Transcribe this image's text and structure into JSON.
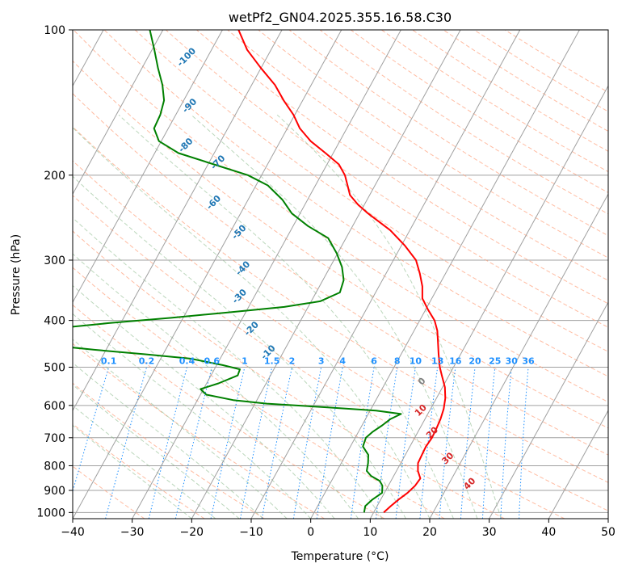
{
  "chart_data": {
    "type": "line",
    "title": "wetPf2_GN04.2025.355.16.58.C30",
    "xlabel": "Temperature (°C)",
    "ylabel": "Pressure (hPa)",
    "xlim": [
      -40,
      50
    ],
    "ylim": [
      1030,
      100
    ],
    "y_scale": "log",
    "x_ticks": [
      -40,
      -30,
      -20,
      -10,
      0,
      10,
      20,
      30,
      40,
      50
    ],
    "y_ticks": [
      100,
      200,
      300,
      400,
      500,
      600,
      700,
      800,
      900,
      1000
    ],
    "grid": true,
    "skew_t": true,
    "colors": {
      "temperature": "#ff0000",
      "dewpoint": "#008000",
      "isotherm": "#a0a0a0",
      "dry_adiabat": "#ffa07a",
      "moist_adiabat": "#8fbc8f",
      "mixing_ratio": "#1e90ff",
      "label_blue": "#1f77b4",
      "label_red": "#d62728",
      "label_grey": "#808080"
    },
    "series": [
      {
        "key": "temperature",
        "points": [
          [
            1000,
            11.7
          ],
          [
            970,
            12.3
          ],
          [
            940,
            13.0
          ],
          [
            910,
            13.9
          ],
          [
            880,
            14.5
          ],
          [
            850,
            14.7
          ],
          [
            820,
            13.6
          ],
          [
            790,
            12.9
          ],
          [
            760,
            12.8
          ],
          [
            730,
            12.7
          ],
          [
            700,
            12.9
          ],
          [
            670,
            12.8
          ],
          [
            640,
            12.6
          ],
          [
            610,
            12.2
          ],
          [
            580,
            11.5
          ],
          [
            550,
            10.4
          ],
          [
            520,
            8.8
          ],
          [
            500,
            7.7
          ],
          [
            470,
            6.3
          ],
          [
            440,
            4.9
          ],
          [
            420,
            3.9
          ],
          [
            400,
            2.5
          ],
          [
            380,
            0.4
          ],
          [
            360,
            -1.6
          ],
          [
            340,
            -2.7
          ],
          [
            320,
            -4.3
          ],
          [
            300,
            -6.2
          ],
          [
            280,
            -9.4
          ],
          [
            260,
            -13.3
          ],
          [
            240,
            -18.6
          ],
          [
            230,
            -21.1
          ],
          [
            220,
            -23.3
          ],
          [
            210,
            -24.6
          ],
          [
            200,
            -26.0
          ],
          [
            190,
            -28.0
          ],
          [
            180,
            -31.3
          ],
          [
            170,
            -34.9
          ],
          [
            160,
            -37.9
          ],
          [
            150,
            -40.2
          ],
          [
            140,
            -43.2
          ],
          [
            130,
            -46.1
          ],
          [
            120,
            -50.0
          ],
          [
            110,
            -54.0
          ],
          [
            100,
            -57.3
          ]
        ]
      },
      {
        "key": "dewpoint",
        "points": [
          [
            1000,
            8.4
          ],
          [
            970,
            8.0
          ],
          [
            940,
            8.6
          ],
          [
            910,
            9.6
          ],
          [
            880,
            9.0
          ],
          [
            860,
            8.1
          ],
          [
            840,
            6.2
          ],
          [
            820,
            5.0
          ],
          [
            790,
            4.5
          ],
          [
            760,
            3.8
          ],
          [
            730,
            2.1
          ],
          [
            700,
            1.8
          ],
          [
            680,
            2.4
          ],
          [
            660,
            3.4
          ],
          [
            640,
            4.2
          ],
          [
            625,
            5.5
          ],
          [
            615,
            1.0
          ],
          [
            605,
            -8.0
          ],
          [
            595,
            -18.0
          ],
          [
            585,
            -24.0
          ],
          [
            570,
            -29.0
          ],
          [
            555,
            -30.5
          ],
          [
            540,
            -28.0
          ],
          [
            520,
            -25.5
          ],
          [
            505,
            -25.7
          ],
          [
            495,
            -29.0
          ],
          [
            480,
            -35.0
          ],
          [
            470,
            -43.0
          ],
          [
            460,
            -52.0
          ],
          [
            450,
            -60.0
          ],
          [
            440,
            -63.2
          ],
          [
            425,
            -63.0
          ],
          [
            415,
            -60.0
          ],
          [
            405,
            -52.0
          ],
          [
            395,
            -42.0
          ],
          [
            385,
            -33.0
          ],
          [
            375,
            -24.0
          ],
          [
            365,
            -18.5
          ],
          [
            350,
            -16.0
          ],
          [
            330,
            -16.5
          ],
          [
            310,
            -18.0
          ],
          [
            290,
            -20.2
          ],
          [
            270,
            -23.0
          ],
          [
            255,
            -27.5
          ],
          [
            240,
            -31.4
          ],
          [
            225,
            -34.2
          ],
          [
            210,
            -38.0
          ],
          [
            200,
            -42.3
          ],
          [
            190,
            -49.0
          ],
          [
            180,
            -56.0
          ],
          [
            170,
            -60.4
          ],
          [
            160,
            -62.4
          ],
          [
            150,
            -62.6
          ],
          [
            140,
            -63.3
          ],
          [
            130,
            -65.0
          ],
          [
            120,
            -67.3
          ],
          [
            110,
            -69.6
          ],
          [
            100,
            -72.2
          ]
        ]
      }
    ],
    "dry_adiabat_labels": [
      "-100",
      "-90",
      "-80",
      "-70",
      "-60",
      "-50",
      "-40",
      "-30",
      "-20",
      "-10"
    ],
    "moist_labels_red": [
      "10",
      "20",
      "30",
      "40"
    ],
    "moist_label_zero": "0",
    "mixing_ratio_labels": [
      "0.1",
      "0.2",
      "0.4",
      "0.6",
      "1",
      "1.5",
      "2",
      "3",
      "4",
      "6",
      "8",
      "10",
      "13",
      "16",
      "20",
      "25",
      "30",
      "36"
    ]
  }
}
